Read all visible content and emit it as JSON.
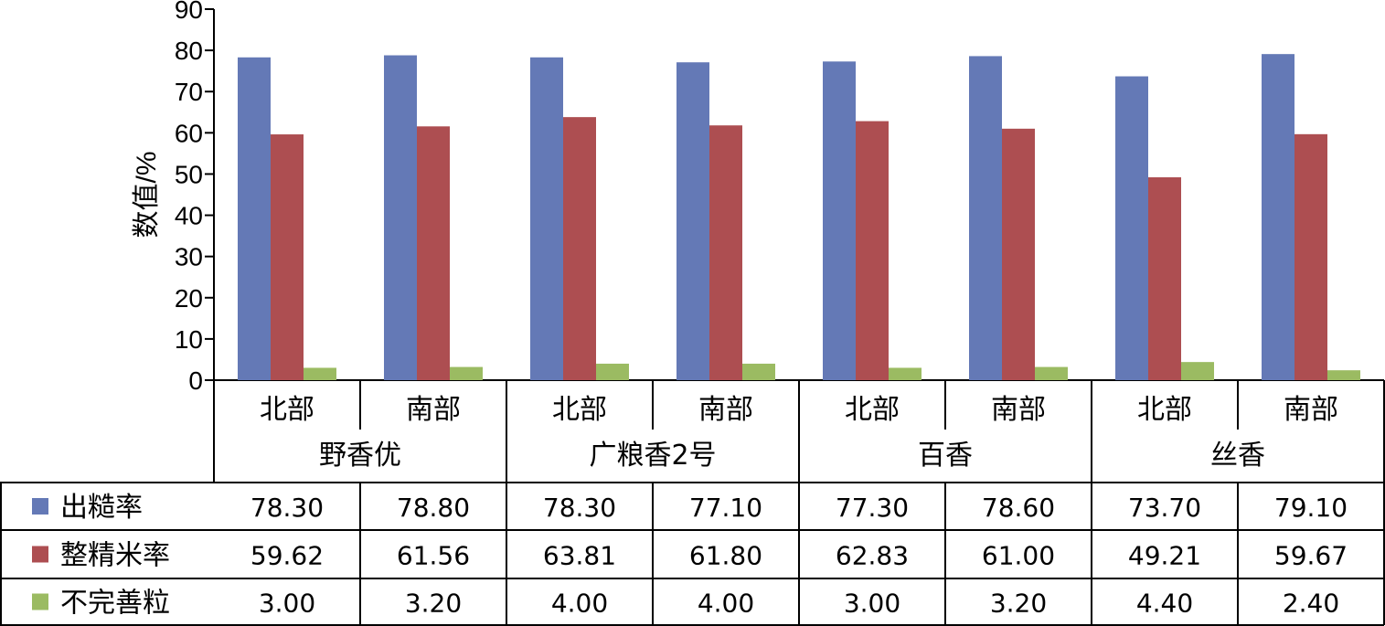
{
  "chart_data": {
    "type": "bar",
    "ylabel": "数值/%",
    "ylim": [
      0,
      90
    ],
    "yticks": [
      0,
      10,
      20,
      30,
      40,
      50,
      60,
      70,
      80,
      90
    ],
    "groups": [
      {
        "name": "野香优",
        "categories": [
          "北部",
          "南部"
        ]
      },
      {
        "name": "广粮香2号",
        "categories": [
          "北部",
          "南部"
        ]
      },
      {
        "name": "百香",
        "categories": [
          "北部",
          "南部"
        ]
      },
      {
        "name": "丝香",
        "categories": [
          "北部",
          "南部"
        ]
      }
    ],
    "series": [
      {
        "name": "出糙率",
        "color": "#6479b6",
        "values": [
          78.3,
          78.8,
          78.3,
          77.1,
          77.3,
          78.6,
          73.7,
          79.1
        ],
        "labels": [
          "78.30",
          "78.80",
          "78.30",
          "77.10",
          "77.30",
          "78.60",
          "73.70",
          "79.10"
        ]
      },
      {
        "name": "整精米率",
        "color": "#ad4e51",
        "values": [
          59.62,
          61.56,
          63.81,
          61.8,
          62.83,
          61.0,
          49.21,
          59.67
        ],
        "labels": [
          "59.62",
          "61.56",
          "63.81",
          "61.80",
          "62.83",
          "61.00",
          "49.21",
          "59.67"
        ]
      },
      {
        "name": "不完善粒",
        "color": "#9bbb62",
        "values": [
          3.0,
          3.2,
          4.0,
          4.0,
          3.0,
          3.2,
          4.4,
          2.4
        ],
        "labels": [
          "3.00",
          "3.20",
          "4.00",
          "4.00",
          "3.00",
          "3.20",
          "4.40",
          "2.40"
        ]
      }
    ],
    "grid": false,
    "legend": "data-table"
  }
}
